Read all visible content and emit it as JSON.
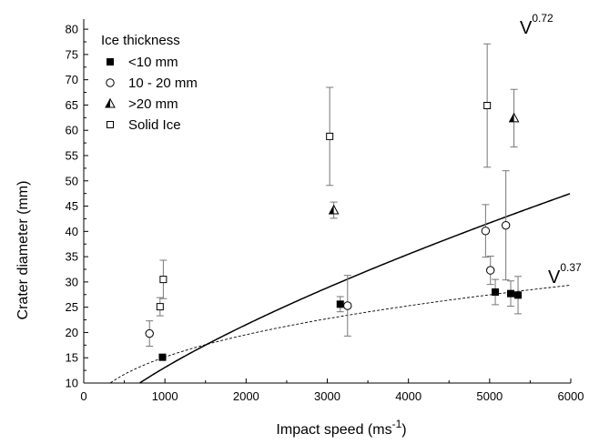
{
  "chart_data": {
    "type": "scatter",
    "xlabel": "Impact speed (ms",
    "xlabel_sup": "-1",
    "xlabel_end": ")",
    "ylabel": "Crater diameter (mm)",
    "xlim": [
      0,
      6000
    ],
    "ylim": [
      10,
      82
    ],
    "xticks": [
      0,
      1000,
      2000,
      3000,
      4000,
      5000,
      6000
    ],
    "yticks": [
      10,
      15,
      20,
      25,
      30,
      35,
      40,
      45,
      50,
      55,
      60,
      65,
      70,
      75,
      80
    ],
    "grid": false,
    "legend": {
      "title": "Ice thickness",
      "placement": "top-left",
      "entries": [
        "<10 mm",
        "10 - 20 mm",
        ">20 mm",
        "Solid Ice"
      ]
    },
    "series": [
      {
        "name": "<10 mm",
        "marker": "filled-square",
        "points": [
          {
            "x": 970,
            "y": 15.1,
            "err": 0.5
          },
          {
            "x": 3160,
            "y": 25.6,
            "err": 1.5
          },
          {
            "x": 5070,
            "y": 28.0,
            "err": 2.5
          },
          {
            "x": 5260,
            "y": 27.7,
            "err": 2.5
          },
          {
            "x": 5350,
            "y": 27.4,
            "err": 3.7
          }
        ]
      },
      {
        "name": "10 - 20 mm",
        "marker": "open-circle",
        "points": [
          {
            "x": 810,
            "y": 19.8,
            "err": 2.5
          },
          {
            "x": 3250,
            "y": 25.3,
            "err": 6.0
          },
          {
            "x": 4950,
            "y": 40.1,
            "err": 5.2
          },
          {
            "x": 5010,
            "y": 32.3,
            "err": 2.8
          },
          {
            "x": 5200,
            "y": 41.2,
            "err": 10.8
          }
        ]
      },
      {
        "name": ">20 mm",
        "marker": "half-triangle",
        "points": [
          {
            "x": 3080,
            "y": 44.2,
            "err": 1.6
          },
          {
            "x": 5300,
            "y": 62.4,
            "err": 5.7
          }
        ]
      },
      {
        "name": "Solid Ice",
        "marker": "open-square",
        "points": [
          {
            "x": 940,
            "y": 25.1,
            "err": 1.8
          },
          {
            "x": 980,
            "y": 30.5,
            "err": 3.8
          },
          {
            "x": 3030,
            "y": 58.8,
            "err": 9.7
          },
          {
            "x": 4970,
            "y": 64.9,
            "err": 12.2
          }
        ]
      }
    ],
    "fits": [
      {
        "label": "V",
        "exponent": "0.72",
        "style": "solid",
        "coef": 0.0905,
        "power": 0.72
      },
      {
        "label": "V",
        "exponent": "0.37",
        "style": "dashed",
        "coef": 1.175,
        "power": 0.37
      }
    ]
  }
}
